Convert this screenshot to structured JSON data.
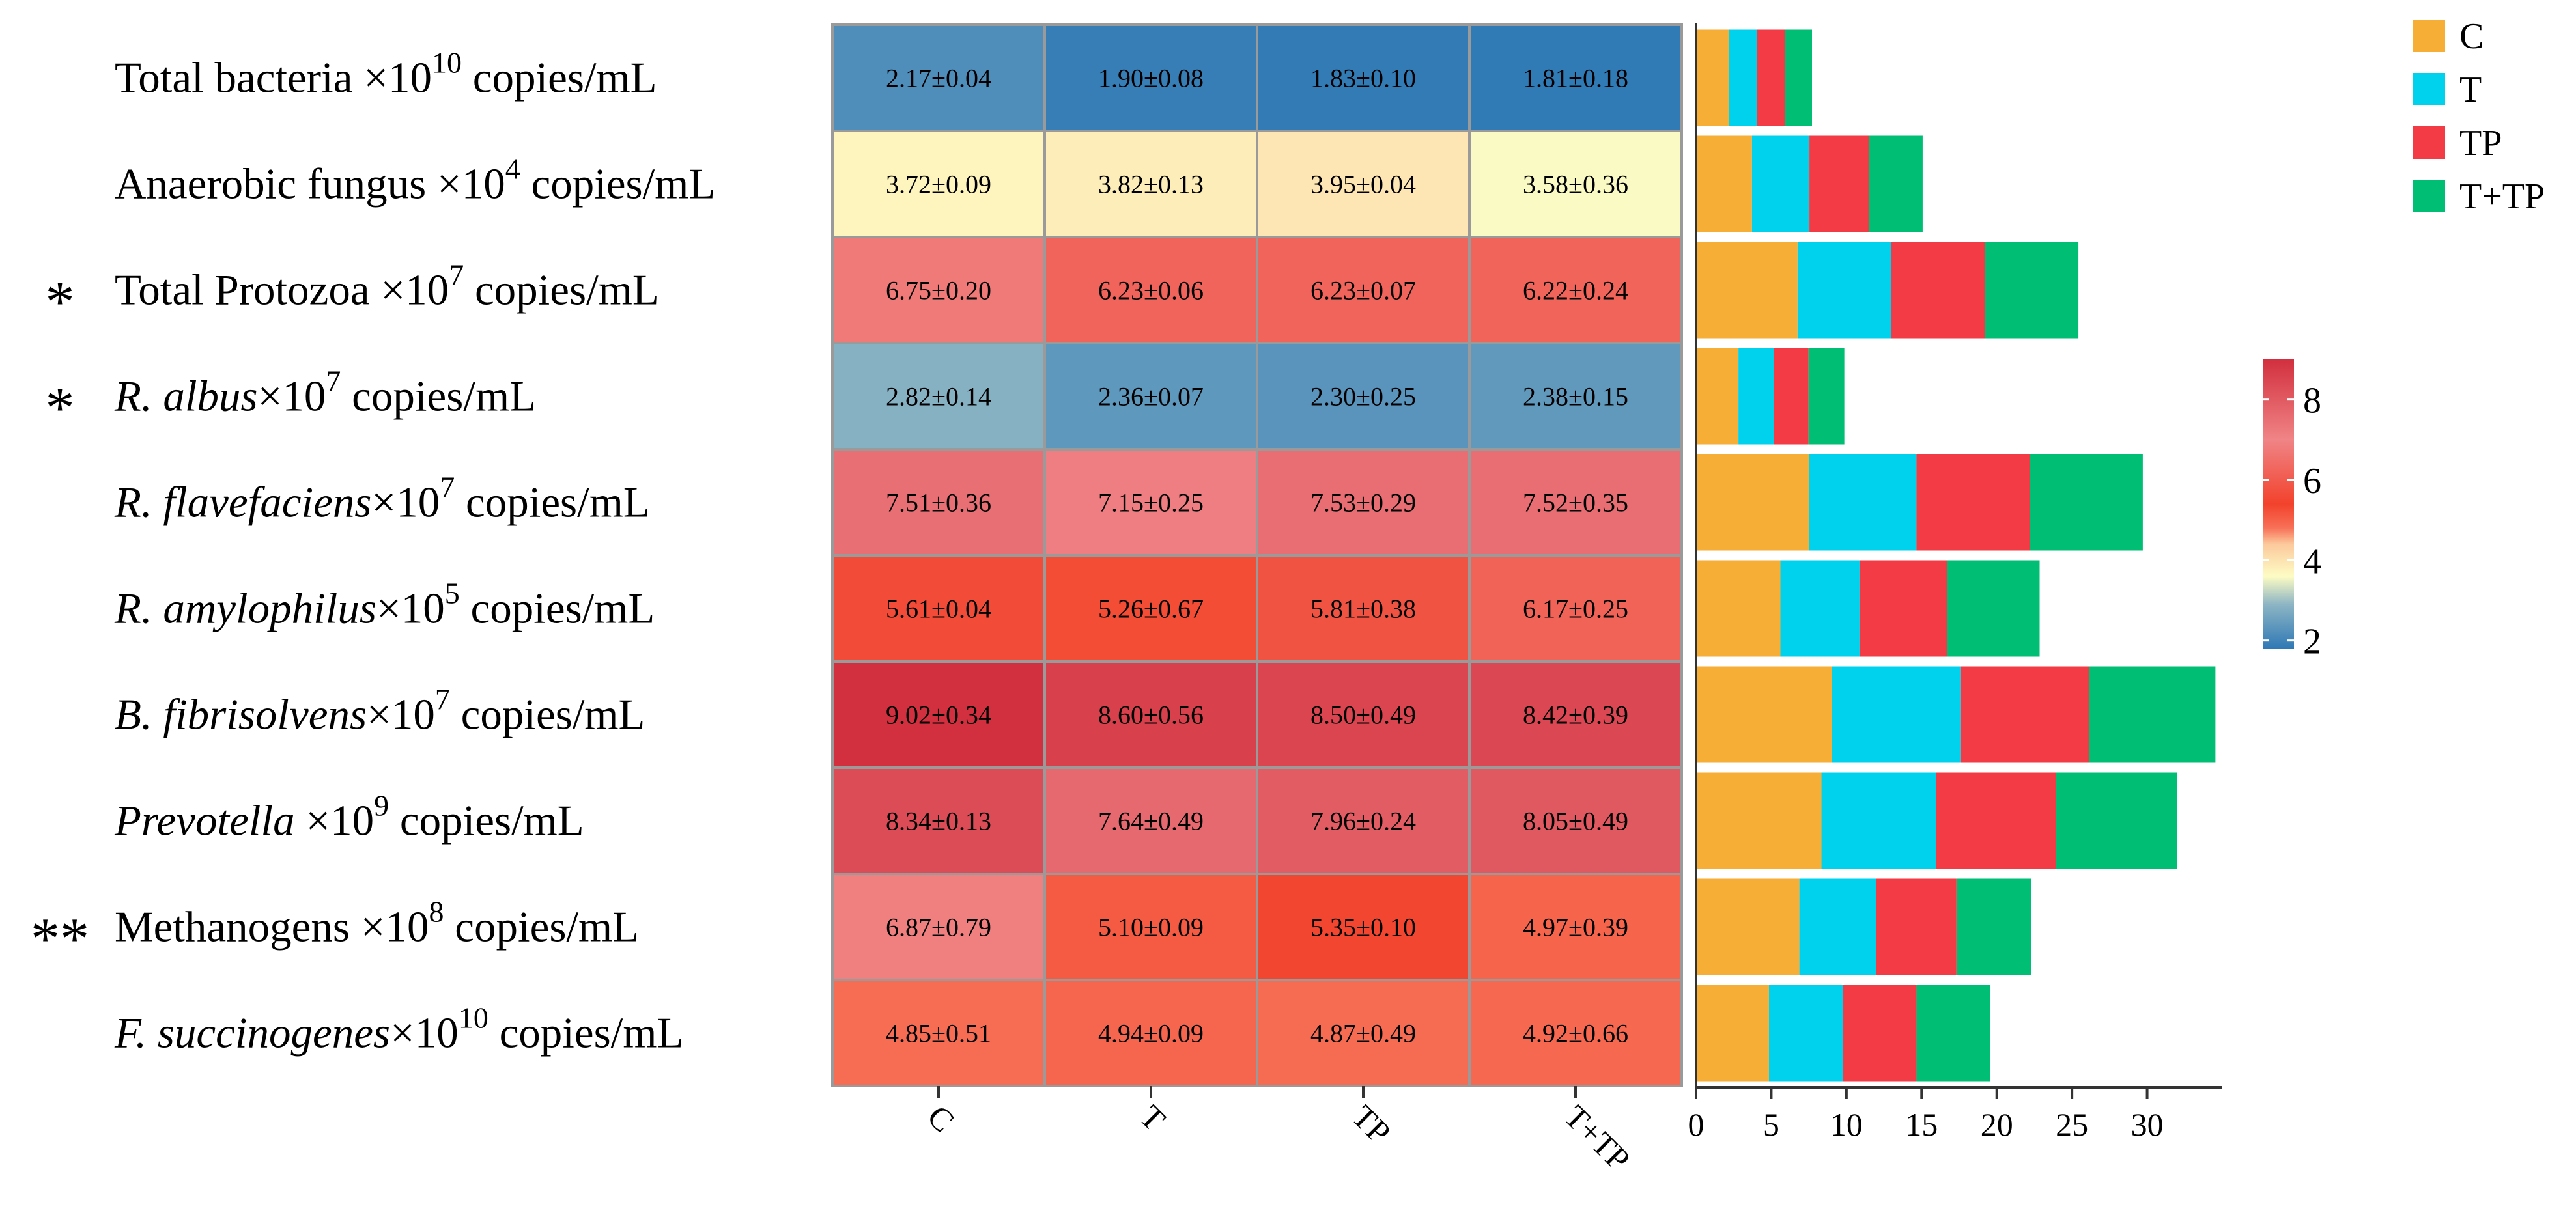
{
  "chart_data": {
    "type": "heatmap",
    "columns": [
      "C",
      "T",
      "TP",
      "T+TP"
    ],
    "rows": [
      {
        "sig": "",
        "name": "Total bacteria",
        "italic": false,
        "exp": "10",
        "mult": " ×10",
        "unit": " copies/mL",
        "cells": [
          "2.17±0.04",
          "1.90±0.08",
          "1.83±0.10",
          "1.81±0.18"
        ],
        "values": [
          2.17,
          1.9,
          1.83,
          1.81
        ]
      },
      {
        "sig": "",
        "name": "Anaerobic fungus",
        "italic": false,
        "exp": "4",
        "mult": " ×10",
        "unit": " copies/mL",
        "cells": [
          "3.72±0.09",
          "3.82±0.13",
          "3.95±0.04",
          "3.58±0.36"
        ],
        "values": [
          3.72,
          3.82,
          3.95,
          3.58
        ]
      },
      {
        "sig": "*",
        "name": "Total Protozoa",
        "italic": false,
        "exp": "7",
        "mult": " ×10",
        "unit": " copies/mL",
        "cells": [
          "6.75±0.20",
          "6.23±0.06",
          "6.23±0.07",
          "6.22±0.24"
        ],
        "values": [
          6.75,
          6.23,
          6.23,
          6.22
        ]
      },
      {
        "sig": "*",
        "name": "R. albus",
        "italic": true,
        "exp": "7",
        "mult": "×10",
        "unit": " copies/mL",
        "cells": [
          "2.82±0.14",
          "2.36±0.07",
          "2.30±0.25",
          "2.38±0.15"
        ],
        "values": [
          2.82,
          2.36,
          2.3,
          2.38
        ]
      },
      {
        "sig": "",
        "name": "R. flavefaciens",
        "italic": true,
        "exp": "7",
        "mult": "×10",
        "unit": " copies/mL",
        "cells": [
          "7.51±0.36",
          "7.15±0.25",
          "7.53±0.29",
          "7.52±0.35"
        ],
        "values": [
          7.51,
          7.15,
          7.53,
          7.52
        ]
      },
      {
        "sig": "",
        "name": "R. amylophilus",
        "italic": true,
        "exp": "5",
        "mult": "×10",
        "unit": " copies/mL",
        "cells": [
          "5.61±0.04",
          "5.26±0.67",
          "5.81±0.38",
          "6.17±0.25"
        ],
        "values": [
          5.61,
          5.26,
          5.81,
          6.17
        ]
      },
      {
        "sig": "",
        "name": "B. fibrisolvens",
        "italic": true,
        "exp": "7",
        "mult": "×10",
        "unit": " copies/mL",
        "cells": [
          "9.02±0.34",
          "8.60±0.56",
          "8.50±0.49",
          "8.42±0.39"
        ],
        "values": [
          9.02,
          8.6,
          8.5,
          8.42
        ]
      },
      {
        "sig": "",
        "name": "Prevotella",
        "italic": true,
        "exp": "9",
        "mult": " ×10",
        "unit": " copies/mL",
        "cells": [
          "8.34±0.13",
          "7.64±0.49",
          "7.96±0.24",
          "8.05±0.49"
        ],
        "values": [
          8.34,
          7.64,
          7.96,
          8.05
        ]
      },
      {
        "sig": "**",
        "name": "Methanogens",
        "italic": false,
        "exp": "8",
        "mult": " ×10",
        "unit": " copies/mL",
        "cells": [
          "6.87±0.79",
          "5.10±0.09",
          "5.35±0.10",
          "4.97±0.39"
        ],
        "values": [
          6.87,
          5.1,
          5.35,
          4.97
        ]
      },
      {
        "sig": "",
        "name": "F. succinogenes",
        "italic": true,
        "exp": "10",
        "mult": "×10",
        "unit": " copies/mL",
        "cells": [
          "4.85±0.51",
          "4.94±0.09",
          "4.87±0.49",
          "4.92±0.66"
        ],
        "values": [
          4.85,
          4.94,
          4.87,
          4.92
        ]
      }
    ],
    "stacked_bar": {
      "type": "bar",
      "orientation": "horizontal",
      "stacked": true,
      "series": [
        "C",
        "T",
        "TP",
        "T+TP"
      ],
      "colors": [
        "#F7AE36",
        "#00D2EE",
        "#F23B45",
        "#00BE74"
      ],
      "xlim": [
        0,
        35
      ],
      "x_ticks": [
        "0",
        "5",
        "10",
        "15",
        "20",
        "25",
        "30"
      ]
    },
    "colorbar": {
      "range": [
        1.8,
        9.0
      ],
      "ticks": [
        "2",
        "4",
        "6",
        "8"
      ],
      "tick_values": [
        2,
        4,
        6,
        8
      ],
      "stops": [
        {
          "v": 1.8,
          "c": "#2F79B5"
        },
        {
          "v": 2.9,
          "c": "#8DB5C4"
        },
        {
          "v": 3.6,
          "c": "#FDFCC4"
        },
        {
          "v": 4.4,
          "c": "#FCC99C"
        },
        {
          "v": 4.8,
          "c": "#F77158"
        },
        {
          "v": 5.4,
          "c": "#F2422C"
        },
        {
          "v": 7.0,
          "c": "#F08486"
        },
        {
          "v": 9.0,
          "c": "#D2303E"
        }
      ]
    },
    "legend": {
      "position": "top-right",
      "labels": [
        "C",
        "T",
        "TP",
        "T+TP"
      ]
    }
  }
}
